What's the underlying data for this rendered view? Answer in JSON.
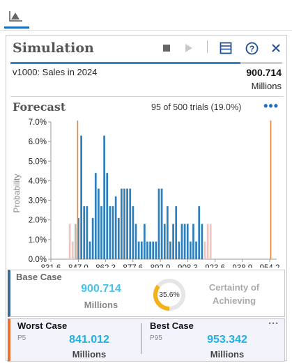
{
  "panel": {
    "title": "Simulation",
    "icons": {
      "stop": "stop-icon",
      "play": "play-icon",
      "layout": "layout-icon",
      "help": "help-icon",
      "close": "close-icon"
    }
  },
  "forecast_line": {
    "name": "v1000: Sales in 2024",
    "value": "900.714",
    "unit": "Millions"
  },
  "forecast_section": {
    "title": "Forecast",
    "trials": "95 of 500 trials (19.0%)",
    "more": "•••"
  },
  "chart_data": {
    "type": "bar",
    "ylabel": "Probability",
    "xlabel": "",
    "ylim": [
      0,
      7
    ],
    "y_ticks": [
      "0.0%",
      "1.0%",
      "2.0%",
      "3.0%",
      "4.0%",
      "5.0%",
      "6.0%",
      "7.0%"
    ],
    "x_ticks": [
      "831.6",
      "847.0",
      "862.3",
      "877.6",
      "892.9",
      "908.3",
      "923.6",
      "938.9",
      "954.2"
    ],
    "x_tick_values": [
      831.6,
      847.0,
      862.3,
      877.6,
      892.9,
      908.3,
      923.6,
      938.9,
      954.2
    ],
    "bin_start": 846.5,
    "bin_width": 1.61,
    "values": [
      2.1,
      6.3,
      2.7,
      2.7,
      0.9,
      2.1,
      4.4,
      3.6,
      2.7,
      6.3,
      4.4,
      2.7,
      2.7,
      3.2,
      2.1,
      3.6,
      3.6,
      3.6,
      3.6,
      2.7,
      1.8,
      0.9,
      0.9,
      1.8,
      0.9,
      0.9,
      0.9,
      0.9,
      3.6,
      3.6,
      1.8,
      2.7,
      0.9,
      1.8,
      2.7,
      0.9,
      1.8,
      1.8,
      1.8,
      0.9,
      1.8,
      0.9,
      2.7,
      1.8
    ],
    "left_tail_values": [
      1.8,
      0.9,
      1.8
    ],
    "right_tail_values": [
      0.9,
      1.8,
      1.8
    ],
    "markers": [
      846.6,
      954.8
    ],
    "colors": {
      "bar": "#2e7fbd",
      "tail": "#f3c4bd",
      "tail_grey": "#b9b9b9",
      "marker": "#e9823a",
      "axis": "#999999"
    }
  },
  "base_case": {
    "label": "Base Case",
    "value": "900.714",
    "unit": "Millions",
    "certainty_value": 0.356,
    "certainty_text": "35.6%",
    "certainty_label": "Certainty of Achieving"
  },
  "worst_case": {
    "label": "Worst Case",
    "percentile": "P5",
    "value": "841.012",
    "unit": "Millions"
  },
  "best_case": {
    "label": "Best Case",
    "percentile": "P95",
    "value": "953.342",
    "unit": "Millions"
  },
  "colors": {
    "accent": "#1f6fbf",
    "value_blue": "#1fb1e4",
    "worst_border": "#e96f35",
    "base_border": "#3d6a97",
    "gauge": "#f2b21b"
  }
}
